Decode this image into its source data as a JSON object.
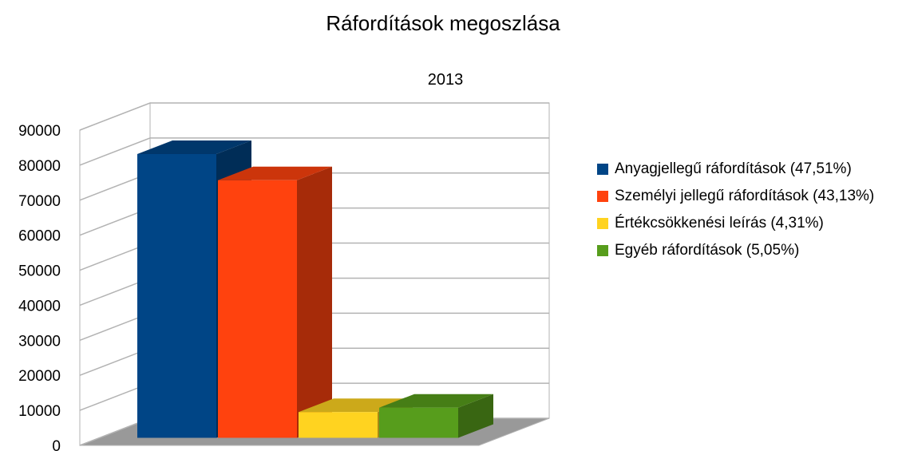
{
  "chart_data": {
    "type": "bar3d",
    "title": "Ráfordítások megoszlása",
    "categories": [
      "2013"
    ],
    "series": [
      {
        "name": "Anyagjellegű ráfordítások (47,51%)",
        "color": "#004586",
        "values": [
          81000
        ]
      },
      {
        "name": "Személyi jellegű ráfordítások (43,13%)",
        "color": "#ff420e",
        "values": [
          73530
        ]
      },
      {
        "name": "Értékcsökkenési leírás (4,31%)",
        "color": "#ffd320",
        "values": [
          7350
        ]
      },
      {
        "name": "Egyéb ráfordítások (5,05%)",
        "color": "#579d1c",
        "values": [
          8610
        ]
      }
    ],
    "ylim": [
      0,
      90000
    ],
    "yticks": [
      0,
      10000,
      20000,
      30000,
      40000,
      50000,
      60000,
      70000,
      80000,
      90000
    ],
    "grid": true,
    "legend": "right"
  }
}
